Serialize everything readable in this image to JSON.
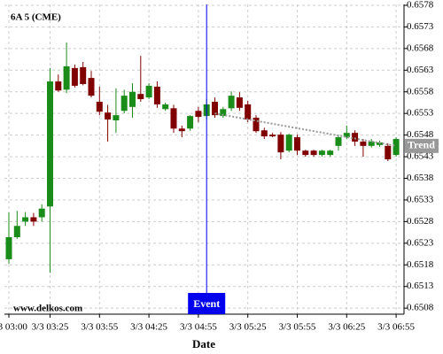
{
  "chart_data": {
    "type": "candlestick",
    "title": "6A 5 (CME)",
    "watermark": "www.delkos.com",
    "xlabel": "Date",
    "categories": [
      "3/3 03:00",
      null,
      null,
      null,
      null,
      "3/3 03:25",
      null,
      null,
      null,
      null,
      null,
      "3/3 03:55",
      null,
      null,
      null,
      null,
      null,
      "3/3 04:25",
      null,
      null,
      null,
      null,
      null,
      "3/3 04:55",
      null,
      null,
      null,
      null,
      null,
      "3/3 05:25",
      null,
      null,
      null,
      null,
      null,
      "3/3 05:55",
      null,
      null,
      null,
      null,
      null,
      "3/3 06:25",
      null,
      null,
      null,
      null,
      null,
      "3/3 06:55"
    ],
    "open": [
      0.65193,
      0.65244,
      0.6528,
      0.6529,
      0.6529,
      0.65315,
      0.65604,
      0.65585,
      0.65635,
      0.65637,
      0.65612,
      0.65557,
      0.65532,
      0.65514,
      0.65536,
      0.65545,
      0.65575,
      0.65567,
      0.65592,
      0.6554,
      0.65542,
      0.65495,
      0.65495,
      0.65536,
      0.65524,
      0.65557,
      0.65524,
      0.65542,
      0.65567,
      0.65551,
      0.6552,
      0.65491,
      0.65481,
      0.65481,
      0.65444,
      0.65475,
      0.65444,
      0.65444,
      0.65434,
      0.65434,
      0.65455,
      0.65475,
      0.65485,
      0.65465,
      0.65455,
      0.65457,
      0.65455,
      0.65434
    ],
    "high": [
      0.65301,
      0.65305,
      0.65302,
      0.653,
      0.6532,
      0.65635,
      0.6562,
      0.65694,
      0.65643,
      0.65649,
      0.65628,
      0.65592,
      0.6555,
      0.65588,
      0.65585,
      0.656,
      0.65663,
      0.656,
      0.65604,
      0.65555,
      0.6555,
      0.65502,
      0.65526,
      0.65545,
      0.65563,
      0.65567,
      0.65545,
      0.65581,
      0.65579,
      0.65559,
      0.65526,
      0.65497,
      0.65485,
      0.65487,
      0.65483,
      0.65481,
      0.65446,
      0.65446,
      0.65446,
      0.65446,
      0.65481,
      0.65502,
      0.65491,
      0.65471,
      0.65471,
      0.65467,
      0.65461,
      0.65475
    ],
    "low": [
      0.65182,
      0.6524,
      0.6527,
      0.6527,
      0.6528,
      0.65162,
      0.6558,
      0.65577,
      0.6559,
      0.65595,
      0.65567,
      0.65526,
      0.65465,
      0.65485,
      0.6553,
      0.6552,
      0.65557,
      0.65563,
      0.65543,
      0.65536,
      0.65485,
      0.65475,
      0.6549,
      0.6551,
      0.65516,
      0.6552,
      0.6552,
      0.65536,
      0.65536,
      0.6551,
      0.65485,
      0.65471,
      0.65475,
      0.65424,
      0.6544,
      0.65434,
      0.6543,
      0.6543,
      0.6543,
      0.6543,
      0.65444,
      0.65471,
      0.65455,
      0.6543,
      0.65451,
      0.65453,
      0.6542,
      0.6543
    ],
    "close": [
      0.65244,
      0.6527,
      0.6529,
      0.6528,
      0.6531,
      0.65604,
      0.65583,
      0.65639,
      0.65594,
      0.65598,
      0.65571,
      0.65534,
      0.65516,
      0.65526,
      0.65571,
      0.6558,
      0.65563,
      0.65594,
      0.65551,
      0.65551,
      0.65495,
      0.65489,
      0.65524,
      0.65522,
      0.65551,
      0.65526,
      0.6554,
      0.65571,
      0.65543,
      0.65516,
      0.65489,
      0.65477,
      0.65477,
      0.6544,
      0.65481,
      0.65444,
      0.65434,
      0.65434,
      0.65444,
      0.65444,
      0.65475,
      0.65485,
      0.65465,
      0.65455,
      0.65465,
      0.65463,
      0.65424,
      0.65471
    ],
    "up_color": "#1a8c1a",
    "down_color": "#800000",
    "ylim": [
      0.65066,
      0.65782
    ],
    "yticks": [
      0.6508,
      0.6513,
      0.6518,
      0.6523,
      0.6528,
      0.6533,
      0.6538,
      0.6543,
      0.6548,
      0.6553,
      0.6558,
      0.6563,
      0.6568,
      0.6573,
      0.6578
    ],
    "grid": true,
    "event": {
      "label": "Event",
      "color": "#0000ee"
    },
    "trend": {
      "label": "Trend",
      "start": 0.6553,
      "end": 0.65455,
      "color": "#999999"
    }
  }
}
